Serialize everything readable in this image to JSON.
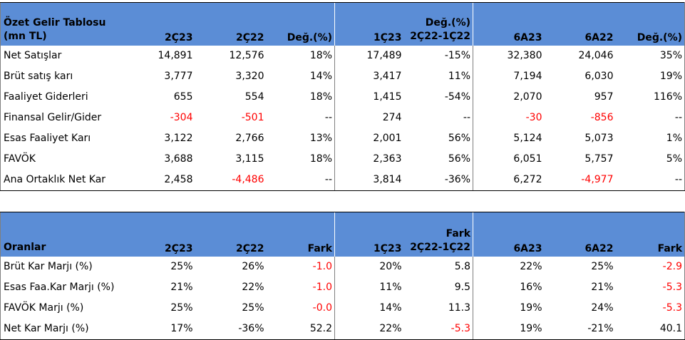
{
  "income": {
    "header": {
      "label_line1": "Özet Gelir Tablosu",
      "label_line2": "(mn TL)",
      "c1": "2Ç23",
      "c2": "2Ç22",
      "c3": "Değ.(%)",
      "c4": "1Ç23",
      "c5_line1": "Değ.(%)",
      "c5_line2": "2Ç22-1Ç22",
      "c6": "6A23",
      "c7": "6A22",
      "c8": "Değ.(%)"
    },
    "rows": [
      {
        "label": "Net Satışlar",
        "v": [
          "14,891",
          "12,576",
          "18%",
          "17,489",
          "-15%",
          "32,380",
          "24,046",
          "35%"
        ]
      },
      {
        "label": "Brüt satış karı",
        "v": [
          "3,777",
          "3,320",
          "14%",
          "3,417",
          "11%",
          "7,194",
          "6,030",
          "19%"
        ]
      },
      {
        "label": "Faaliyet Giderleri",
        "v": [
          "655",
          "554",
          "18%",
          "1,415",
          "-54%",
          "2,070",
          "957",
          "116%"
        ]
      },
      {
        "label": "Finansal Gelir/Gider",
        "v": [
          "-304",
          "-501",
          "--",
          "274",
          "--",
          "-30",
          "-856",
          "--"
        ]
      },
      {
        "label": "Esas Faaliyet Karı",
        "v": [
          "3,122",
          "2,766",
          "13%",
          "2,001",
          "56%",
          "5,124",
          "5,073",
          "1%"
        ]
      },
      {
        "label": "FAVÖK",
        "v": [
          "3,688",
          "3,115",
          "18%",
          "2,363",
          "56%",
          "6,051",
          "5,757",
          "5%"
        ]
      },
      {
        "label": "Ana Ortaklık Net Kar",
        "v": [
          "2,458",
          "-4,486",
          "--",
          "3,814",
          "-36%",
          "6,272",
          "-4,977",
          "--"
        ]
      }
    ]
  },
  "ratios": {
    "header": {
      "label": "Oranlar",
      "c1": "2Ç23",
      "c2": "2Ç22",
      "c3": "Fark",
      "c4": "1Ç23",
      "c5_line1": "Fark",
      "c5_line2": "2Ç22-1Ç22",
      "c6": "6A23",
      "c7": "6A22",
      "c8": "Fark"
    },
    "rows": [
      {
        "label": "Brüt Kar Marjı (%)",
        "v": [
          "25%",
          "26%",
          "-1.0",
          "20%",
          "5.8",
          "22%",
          "25%",
          "-2.9"
        ]
      },
      {
        "label": "Esas Faa.Kar Marjı (%)",
        "v": [
          "21%",
          "22%",
          "-1.0",
          "11%",
          "9.5",
          "16%",
          "21%",
          "-5.3"
        ]
      },
      {
        "label": "FAVÖK Marjı (%)",
        "v": [
          "25%",
          "25%",
          "-0.0",
          "14%",
          "11.3",
          "19%",
          "24%",
          "-5.3"
        ]
      },
      {
        "label": "Net Kar Marjı (%)",
        "v": [
          "17%",
          "-36%",
          "52.2",
          "22%",
          "-5.3",
          "19%",
          "-21%",
          "40.1"
        ]
      }
    ]
  },
  "colors": {
    "header_bg": "#5b8dd6",
    "negative_text": "#ff0000"
  }
}
